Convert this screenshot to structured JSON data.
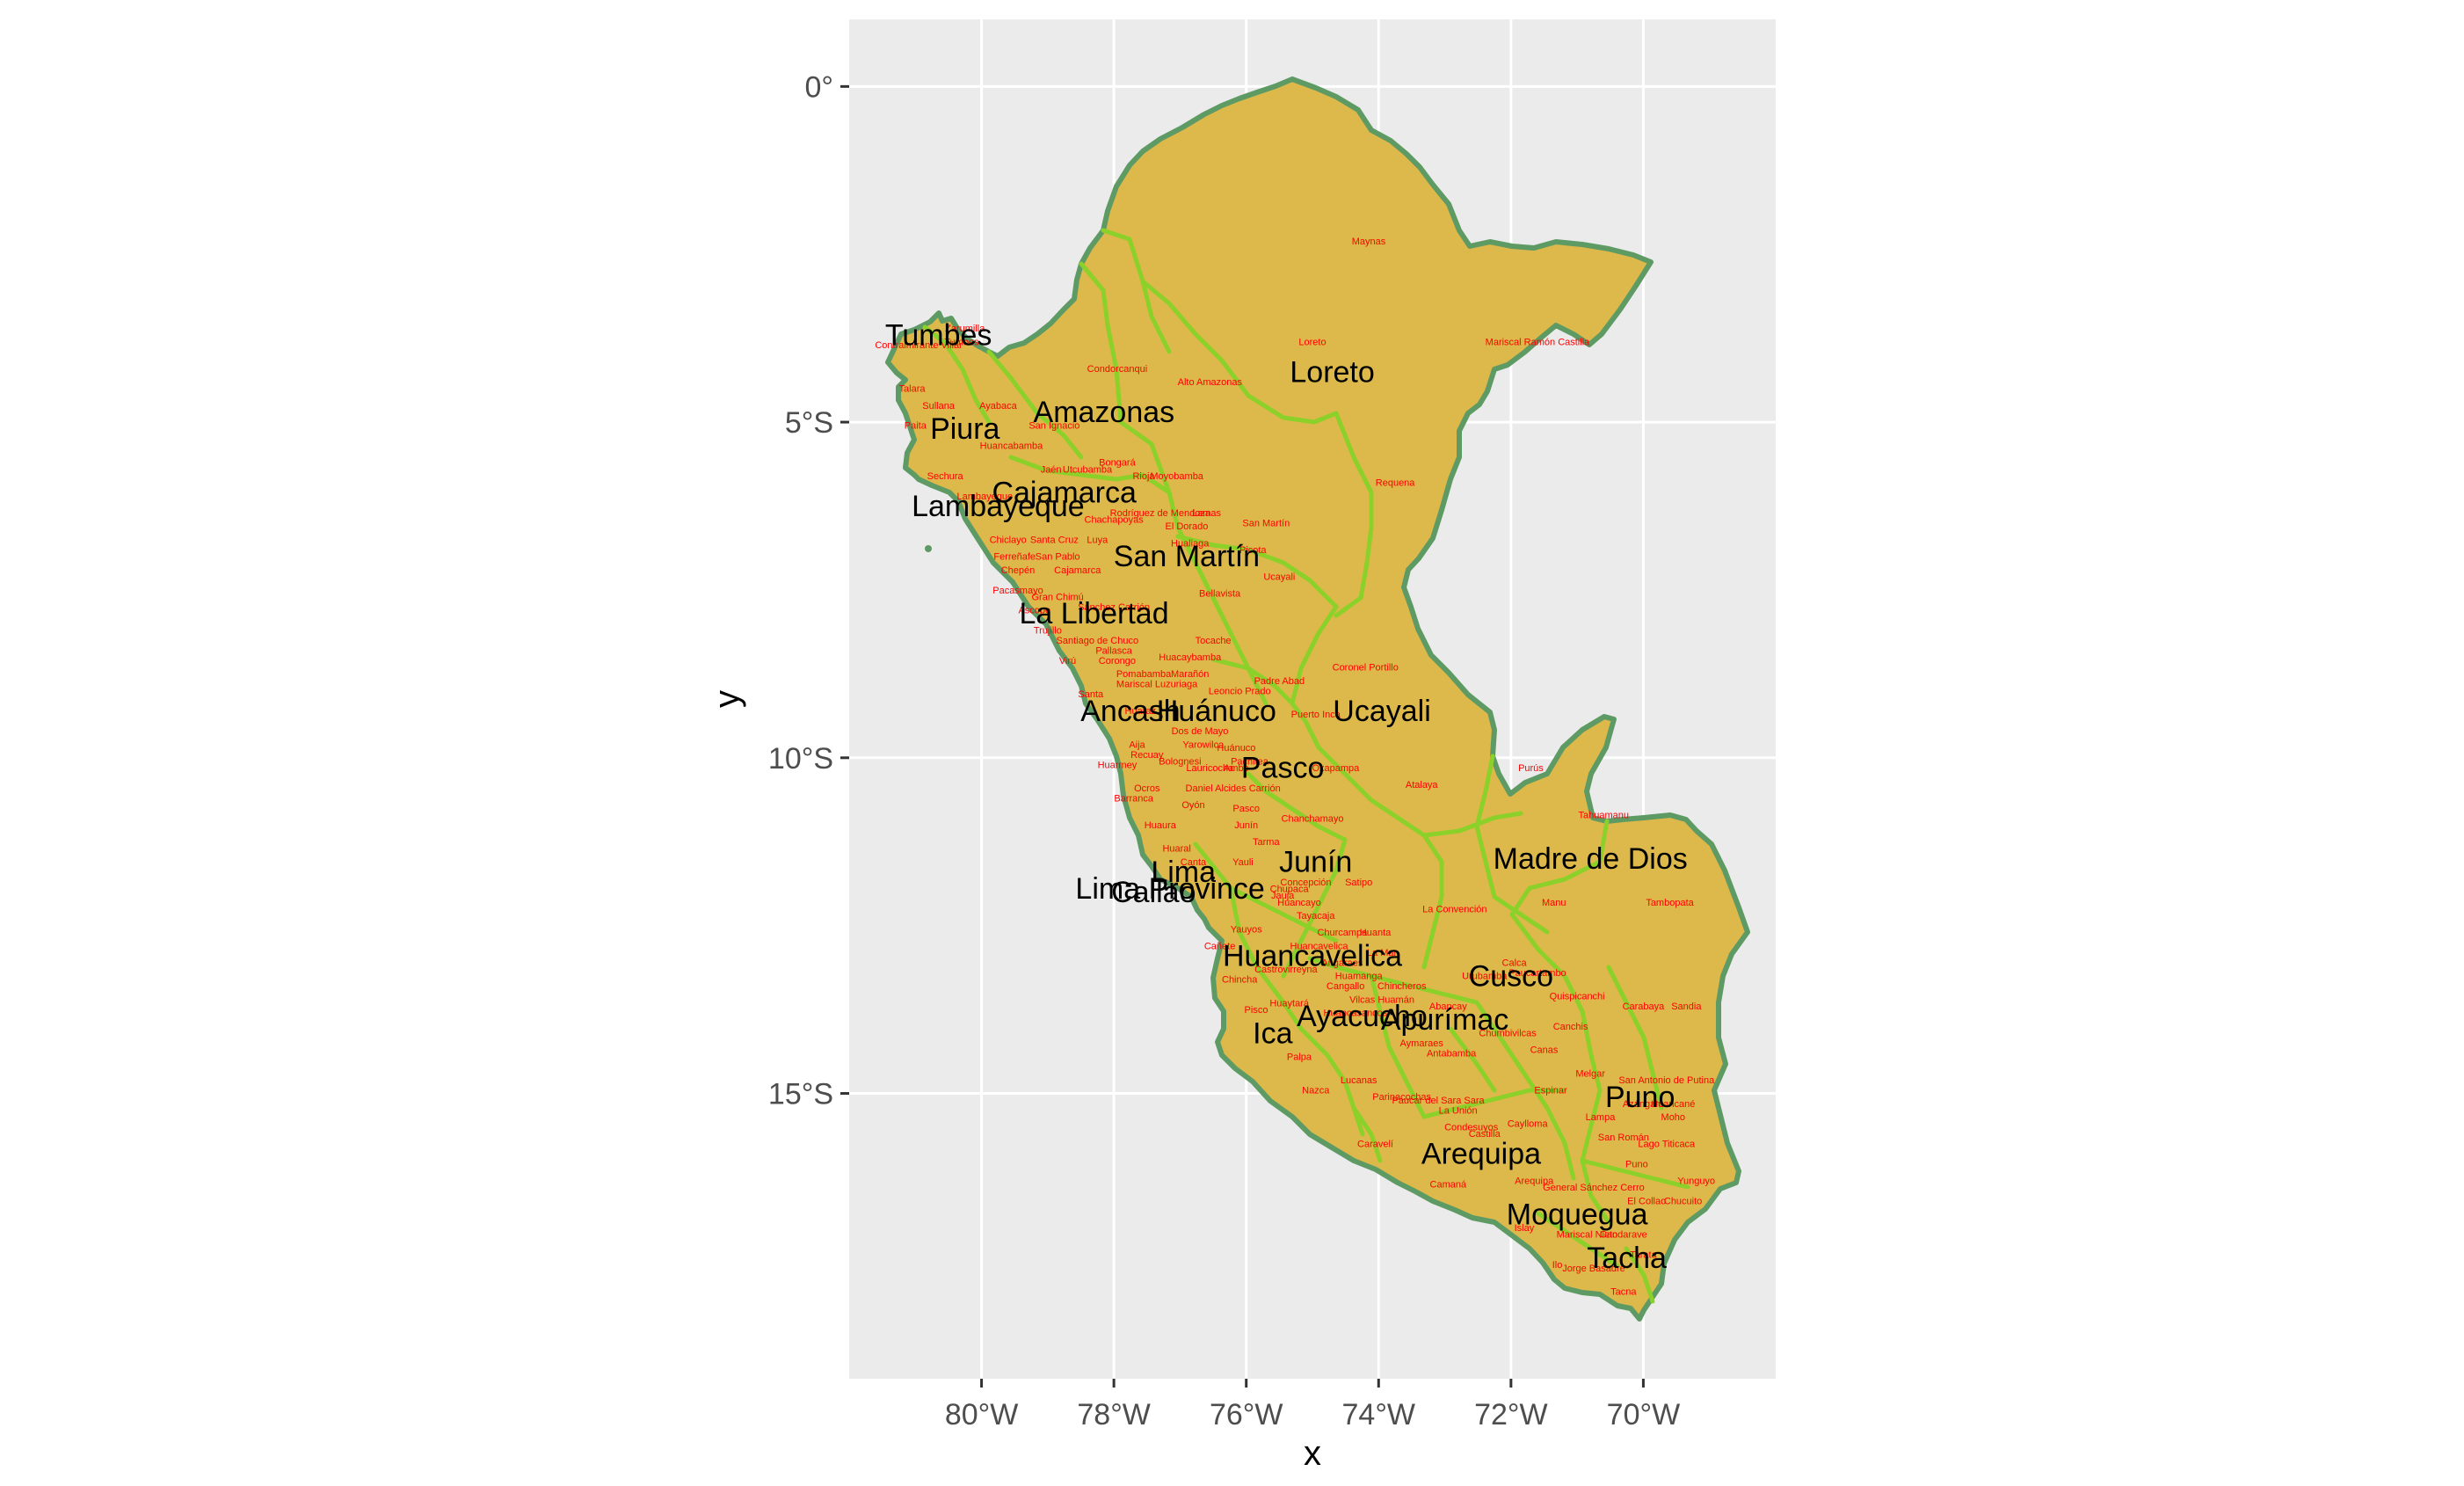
{
  "colors": {
    "panel_background": "#ebebeb",
    "grid_line": "#ffffff",
    "land_fill": "#dcb94a",
    "country_border": "#5e9a64",
    "region_border": "#8bd12a",
    "region_label": "#000000",
    "province_label": "#ff0000"
  },
  "axes": {
    "x_title": "x",
    "y_title": "y",
    "x_range_deg": [
      -82.0,
      -68.0
    ],
    "y_range_deg": [
      -19.25,
      1.0
    ],
    "x_ticks": [
      {
        "value": -80,
        "label": "80°W"
      },
      {
        "value": -78,
        "label": "78°W"
      },
      {
        "value": -76,
        "label": "76°W"
      },
      {
        "value": -74,
        "label": "74°W"
      },
      {
        "value": -72,
        "label": "72°W"
      },
      {
        "value": -70,
        "label": "70°W"
      }
    ],
    "y_ticks": [
      {
        "value": 0,
        "label": "0°"
      },
      {
        "value": -5,
        "label": "5°S"
      },
      {
        "value": -10,
        "label": "10°S"
      },
      {
        "value": -15,
        "label": "15°S"
      }
    ]
  },
  "regions": [
    {
      "name": "Tumbes",
      "lon": -80.65,
      "lat": -3.85
    },
    {
      "name": "Loreto",
      "lon": -74.7,
      "lat": -4.4
    },
    {
      "name": "Piura",
      "lon": -80.25,
      "lat": -5.25
    },
    {
      "name": "Amazonas",
      "lon": -78.15,
      "lat": -5.0
    },
    {
      "name": "Cajamarca",
      "lon": -78.75,
      "lat": -6.2
    },
    {
      "name": "Lambayeque",
      "lon": -79.75,
      "lat": -6.4
    },
    {
      "name": "San Martín",
      "lon": -76.9,
      "lat": -7.15
    },
    {
      "name": "La Libertad",
      "lon": -78.3,
      "lat": -8.0
    },
    {
      "name": "Ancash",
      "lon": -77.75,
      "lat": -9.45
    },
    {
      "name": "Huánuco",
      "lon": -76.45,
      "lat": -9.45
    },
    {
      "name": "Ucayali",
      "lon": -73.95,
      "lat": -9.45
    },
    {
      "name": "Pasco",
      "lon": -75.45,
      "lat": -10.3
    },
    {
      "name": "Madre de Dios",
      "lon": -70.8,
      "lat": -11.65
    },
    {
      "name": "Junín",
      "lon": -74.95,
      "lat": -11.7
    },
    {
      "name": "Lima",
      "lon": -76.95,
      "lat": -11.85
    },
    {
      "name": "Lima Province",
      "lon": -77.15,
      "lat": -12.1
    },
    {
      "name": "Callao",
      "lon": -77.4,
      "lat": -12.15
    },
    {
      "name": "Huancavelica",
      "lon": -75.0,
      "lat": -13.1
    },
    {
      "name": "Cusco",
      "lon": -72.0,
      "lat": -13.4
    },
    {
      "name": "Ayacucho",
      "lon": -74.25,
      "lat": -14.0
    },
    {
      "name": "Apurímac",
      "lon": -73.0,
      "lat": -14.05
    },
    {
      "name": "Ica",
      "lon": -75.6,
      "lat": -14.25
    },
    {
      "name": "Puno",
      "lon": -70.05,
      "lat": -15.2
    },
    {
      "name": "Arequipa",
      "lon": -72.45,
      "lat": -16.05
    },
    {
      "name": "Moquegua",
      "lon": -71.0,
      "lat": -16.95
    },
    {
      "name": "Tacha",
      "lon": -70.25,
      "lat": -17.6
    }
  ],
  "provinces": [
    {
      "name": "Maynas",
      "lon": -74.15,
      "lat": -2.35
    },
    {
      "name": "Loreto",
      "lon": -75.0,
      "lat": -3.85
    },
    {
      "name": "Mariscal Ramón Castilla",
      "lon": -71.6,
      "lat": -3.85
    },
    {
      "name": "Zarumilla",
      "lon": -80.25,
      "lat": -3.65
    },
    {
      "name": "Contralmirante Villar",
      "lon": -80.95,
      "lat": -3.9
    },
    {
      "name": "Tumbes",
      "lon": -80.3,
      "lat": -3.85
    },
    {
      "name": "Condorcanqui",
      "lon": -77.95,
      "lat": -4.25
    },
    {
      "name": "Alto Amazonas",
      "lon": -76.55,
      "lat": -4.45
    },
    {
      "name": "Talara",
      "lon": -81.05,
      "lat": -4.55
    },
    {
      "name": "Sullana",
      "lon": -80.65,
      "lat": -4.8
    },
    {
      "name": "Ayabaca",
      "lon": -79.75,
      "lat": -4.8
    },
    {
      "name": "Paita",
      "lon": -81.0,
      "lat": -5.1
    },
    {
      "name": "San Ignacio",
      "lon": -78.9,
      "lat": -5.1
    },
    {
      "name": "Huancabamba",
      "lon": -79.55,
      "lat": -5.4
    },
    {
      "name": "Bongará",
      "lon": -77.95,
      "lat": -5.65
    },
    {
      "name": "Utcubamba",
      "lon": -78.4,
      "lat": -5.75
    },
    {
      "name": "Jaén",
      "lon": -78.95,
      "lat": -5.75
    },
    {
      "name": "Rioja",
      "lon": -77.55,
      "lat": -5.85
    },
    {
      "name": "Moyobamba",
      "lon": -77.05,
      "lat": -5.85
    },
    {
      "name": "Requena",
      "lon": -73.75,
      "lat": -5.95
    },
    {
      "name": "Sechura",
      "lon": -80.55,
      "lat": -5.85
    },
    {
      "name": "Lambayeque",
      "lon": -79.95,
      "lat": -6.15
    },
    {
      "name": "Chachapoyas",
      "lon": -78.0,
      "lat": -6.5
    },
    {
      "name": "Rodríguez de Mendoza",
      "lon": -77.3,
      "lat": -6.4
    },
    {
      "name": "Lamas",
      "lon": -76.6,
      "lat": -6.4
    },
    {
      "name": "El Dorado",
      "lon": -76.9,
      "lat": -6.6
    },
    {
      "name": "San Martín",
      "lon": -75.7,
      "lat": -6.55
    },
    {
      "name": "Chiclayo",
      "lon": -79.6,
      "lat": -6.8
    },
    {
      "name": "Santa Cruz",
      "lon": -78.9,
      "lat": -6.8
    },
    {
      "name": "Luya",
      "lon": -78.25,
      "lat": -6.8
    },
    {
      "name": "Hualiaga",
      "lon": -76.85,
      "lat": -6.85
    },
    {
      "name": "Picota",
      "lon": -75.9,
      "lat": -6.95
    },
    {
      "name": "Ferreñafe",
      "lon": -79.5,
      "lat": -7.05
    },
    {
      "name": "San Pablo",
      "lon": -78.85,
      "lat": -7.05
    },
    {
      "name": "Chepén",
      "lon": -79.45,
      "lat": -7.25
    },
    {
      "name": "Cajamarca",
      "lon": -78.55,
      "lat": -7.25
    },
    {
      "name": "Ucayali",
      "lon": -75.5,
      "lat": -7.35
    },
    {
      "name": "Pacasmayo",
      "lon": -79.45,
      "lat": -7.55
    },
    {
      "name": "Bellavista",
      "lon": -76.4,
      "lat": -7.6
    },
    {
      "name": "Gran Chimú",
      "lon": -78.85,
      "lat": -7.65
    },
    {
      "name": "Ascope",
      "lon": -79.2,
      "lat": -7.85
    },
    {
      "name": "Sánchez Carrión",
      "lon": -78.0,
      "lat": -7.8
    },
    {
      "name": "Trujillo",
      "lon": -79.0,
      "lat": -8.15
    },
    {
      "name": "Santiago de Chuco",
      "lon": -78.25,
      "lat": -8.3
    },
    {
      "name": "Tocache",
      "lon": -76.5,
      "lat": -8.3
    },
    {
      "name": "Pallasca",
      "lon": -78.0,
      "lat": -8.45
    },
    {
      "name": "Corongo",
      "lon": -77.95,
      "lat": -8.6
    },
    {
      "name": "Virú",
      "lon": -78.7,
      "lat": -8.6
    },
    {
      "name": "Huacaybamba",
      "lon": -76.85,
      "lat": -8.55
    },
    {
      "name": "Coronel Portillo",
      "lon": -74.2,
      "lat": -8.7
    },
    {
      "name": "Pomabamba",
      "lon": -77.55,
      "lat": -8.8
    },
    {
      "name": "Marañón",
      "lon": -76.85,
      "lat": -8.8
    },
    {
      "name": "Padre Abad",
      "lon": -75.5,
      "lat": -8.9
    },
    {
      "name": "Mariscal Luzuriaga",
      "lon": -77.35,
      "lat": -8.95
    },
    {
      "name": "Leoncio Prado",
      "lon": -76.1,
      "lat": -9.05
    },
    {
      "name": "Santa",
      "lon": -78.35,
      "lat": -9.1
    },
    {
      "name": "Huaraz",
      "lon": -77.6,
      "lat": -9.35
    },
    {
      "name": "Puerto Inca",
      "lon": -74.95,
      "lat": -9.4
    },
    {
      "name": "Dos de Mayo",
      "lon": -76.7,
      "lat": -9.65
    },
    {
      "name": "Aija",
      "lon": -77.65,
      "lat": -9.85
    },
    {
      "name": "Yarowilca",
      "lon": -76.65,
      "lat": -9.85
    },
    {
      "name": "Huánuco",
      "lon": -76.15,
      "lat": -9.9
    },
    {
      "name": "Recuay",
      "lon": -77.5,
      "lat": -10.0
    },
    {
      "name": "Pachitea",
      "lon": -75.95,
      "lat": -10.1
    },
    {
      "name": "Bolognesi",
      "lon": -77.0,
      "lat": -10.1
    },
    {
      "name": "Huarmey",
      "lon": -77.95,
      "lat": -10.15
    },
    {
      "name": "Lauricocha",
      "lon": -76.55,
      "lat": -10.2
    },
    {
      "name": "Ambo",
      "lon": -76.15,
      "lat": -10.2
    },
    {
      "name": "Oxapampa",
      "lon": -74.65,
      "lat": -10.2
    },
    {
      "name": "Purús",
      "lon": -71.7,
      "lat": -10.2
    },
    {
      "name": "Atalaya",
      "lon": -73.35,
      "lat": -10.45
    },
    {
      "name": "Daniel Alcides Carrión",
      "lon": -76.2,
      "lat": -10.5
    },
    {
      "name": "Ocros",
      "lon": -77.5,
      "lat": -10.5
    },
    {
      "name": "Barranca",
      "lon": -77.7,
      "lat": -10.65
    },
    {
      "name": "Oyón",
      "lon": -76.8,
      "lat": -10.75
    },
    {
      "name": "Pasco",
      "lon": -76.0,
      "lat": -10.8
    },
    {
      "name": "Tahuamanu",
      "lon": -70.6,
      "lat": -10.9
    },
    {
      "name": "Chanchamayo",
      "lon": -75.0,
      "lat": -10.95
    },
    {
      "name": "Huaura",
      "lon": -77.3,
      "lat": -11.05
    },
    {
      "name": "Junín",
      "lon": -76.0,
      "lat": -11.05
    },
    {
      "name": "Tarma",
      "lon": -75.7,
      "lat": -11.3
    },
    {
      "name": "Huaral",
      "lon": -77.05,
      "lat": -11.4
    },
    {
      "name": "Canta",
      "lon": -76.8,
      "lat": -11.6
    },
    {
      "name": "Yauli",
      "lon": -76.05,
      "lat": -11.6
    },
    {
      "name": "Concepción",
      "lon": -75.1,
      "lat": -11.9
    },
    {
      "name": "Manu",
      "lon": -71.35,
      "lat": -12.2
    },
    {
      "name": "Tambopata",
      "lon": -69.6,
      "lat": -12.2
    },
    {
      "name": "Huancayo",
      "lon": -75.2,
      "lat": -12.2
    },
    {
      "name": "Jauja",
      "lon": -75.45,
      "lat": -12.1
    },
    {
      "name": "Satipo",
      "lon": -74.3,
      "lat": -11.9
    },
    {
      "name": "Chupaca",
      "lon": -75.35,
      "lat": -12.0
    },
    {
      "name": "La Convención",
      "lon": -72.85,
      "lat": -12.3
    },
    {
      "name": "Tayacaja",
      "lon": -74.95,
      "lat": -12.4
    },
    {
      "name": "Yauyos",
      "lon": -76.0,
      "lat": -12.6
    },
    {
      "name": "Churcampa",
      "lon": -74.55,
      "lat": -12.65
    },
    {
      "name": "Huanta",
      "lon": -74.05,
      "lat": -12.65
    },
    {
      "name": "Cañete",
      "lon": -76.4,
      "lat": -12.85
    },
    {
      "name": "Huancavelica",
      "lon": -74.9,
      "lat": -12.85
    },
    {
      "name": "La Mar",
      "lon": -73.95,
      "lat": -12.95
    },
    {
      "name": "Calca",
      "lon": -71.95,
      "lat": -13.1
    },
    {
      "name": "Paucartambo",
      "lon": -71.6,
      "lat": -13.25
    },
    {
      "name": "Urubamba",
      "lon": -72.4,
      "lat": -13.3
    },
    {
      "name": "Huamanga",
      "lon": -74.3,
      "lat": -13.3
    },
    {
      "name": "Angaraes",
      "lon": -74.55,
      "lat": -13.1
    },
    {
      "name": "Chincha",
      "lon": -76.1,
      "lat": -13.35
    },
    {
      "name": "Castrovirreyna",
      "lon": -75.4,
      "lat": -13.2
    },
    {
      "name": "Cangallo",
      "lon": -74.5,
      "lat": -13.45
    },
    {
      "name": "Chincheros",
      "lon": -73.65,
      "lat": -13.45
    },
    {
      "name": "Quispicanchi",
      "lon": -71.0,
      "lat": -13.6
    },
    {
      "name": "Huaytará",
      "lon": -75.35,
      "lat": -13.7
    },
    {
      "name": "Vilcas Huamán",
      "lon": -73.95,
      "lat": -13.65
    },
    {
      "name": "Abancay",
      "lon": -72.95,
      "lat": -13.75
    },
    {
      "name": "Carabaya",
      "lon": -70.0,
      "lat": -13.75
    },
    {
      "name": "Sandia",
      "lon": -69.35,
      "lat": -13.75
    },
    {
      "name": "Pisco",
      "lon": -75.85,
      "lat": -13.8
    },
    {
      "name": "Huancasancos",
      "lon": -74.35,
      "lat": -13.85
    },
    {
      "name": "Chumbivilcas",
      "lon": -72.05,
      "lat": -14.15
    },
    {
      "name": "Canchis",
      "lon": -71.1,
      "lat": -14.05
    },
    {
      "name": "Aymaraes",
      "lon": -73.35,
      "lat": -14.3
    },
    {
      "name": "Palpa",
      "lon": -75.2,
      "lat": -14.5
    },
    {
      "name": "Antabamba",
      "lon": -72.9,
      "lat": -14.45
    },
    {
      "name": "Canas",
      "lon": -71.5,
      "lat": -14.4
    },
    {
      "name": "Melgar",
      "lon": -70.8,
      "lat": -14.75
    },
    {
      "name": "San Antonio de Putina",
      "lon": -69.65,
      "lat": -14.85
    },
    {
      "name": "Lucanas",
      "lon": -74.3,
      "lat": -14.85
    },
    {
      "name": "Nazca",
      "lon": -74.95,
      "lat": -15.0
    },
    {
      "name": "Espinar",
      "lon": -71.4,
      "lat": -15.0
    },
    {
      "name": "Parinacochas",
      "lon": -73.65,
      "lat": -15.1
    },
    {
      "name": "Paucar del Sara Sara",
      "lon": -73.1,
      "lat": -15.15
    },
    {
      "name": "Azángaro",
      "lon": -70.0,
      "lat": -15.2
    },
    {
      "name": "Huancané",
      "lon": -69.55,
      "lat": -15.2
    },
    {
      "name": "Moho",
      "lon": -69.55,
      "lat": -15.4
    },
    {
      "name": "Lampa",
      "lon": -70.65,
      "lat": -15.4
    },
    {
      "name": "Caylloma",
      "lon": -71.75,
      "lat": -15.5
    },
    {
      "name": "Condesuyos",
      "lon": -72.6,
      "lat": -15.55
    },
    {
      "name": "La Unión",
      "lon": -72.8,
      "lat": -15.3
    },
    {
      "name": "Castilla",
      "lon": -72.4,
      "lat": -15.65
    },
    {
      "name": "San Román",
      "lon": -70.3,
      "lat": -15.7
    },
    {
      "name": "Lago Titicaca",
      "lon": -69.65,
      "lat": -15.8
    },
    {
      "name": "Caravelí",
      "lon": -74.05,
      "lat": -15.8
    },
    {
      "name": "Puno",
      "lon": -70.1,
      "lat": -16.1
    },
    {
      "name": "Yunguyo",
      "lon": -69.2,
      "lat": -16.35
    },
    {
      "name": "Camaná",
      "lon": -72.95,
      "lat": -16.4
    },
    {
      "name": "Arequipa",
      "lon": -71.65,
      "lat": -16.35
    },
    {
      "name": "General Sánchez Cerro",
      "lon": -70.75,
      "lat": -16.45
    },
    {
      "name": "El Collao",
      "lon": -69.95,
      "lat": -16.65
    },
    {
      "name": "Chucuito",
      "lon": -69.4,
      "lat": -16.65
    },
    {
      "name": "Islay",
      "lon": -71.8,
      "lat": -17.05
    },
    {
      "name": "Mariscal Nieto",
      "lon": -70.85,
      "lat": -17.15
    },
    {
      "name": "Candarave",
      "lon": -70.3,
      "lat": -17.15
    },
    {
      "name": "Tarata",
      "lon": -70.0,
      "lat": -17.45
    },
    {
      "name": "Ilo",
      "lon": -71.3,
      "lat": -17.6
    },
    {
      "name": "Jorge Basadre",
      "lon": -70.75,
      "lat": -17.65
    },
    {
      "name": "Tacna",
      "lon": -70.3,
      "lat": -18.0
    }
  ]
}
